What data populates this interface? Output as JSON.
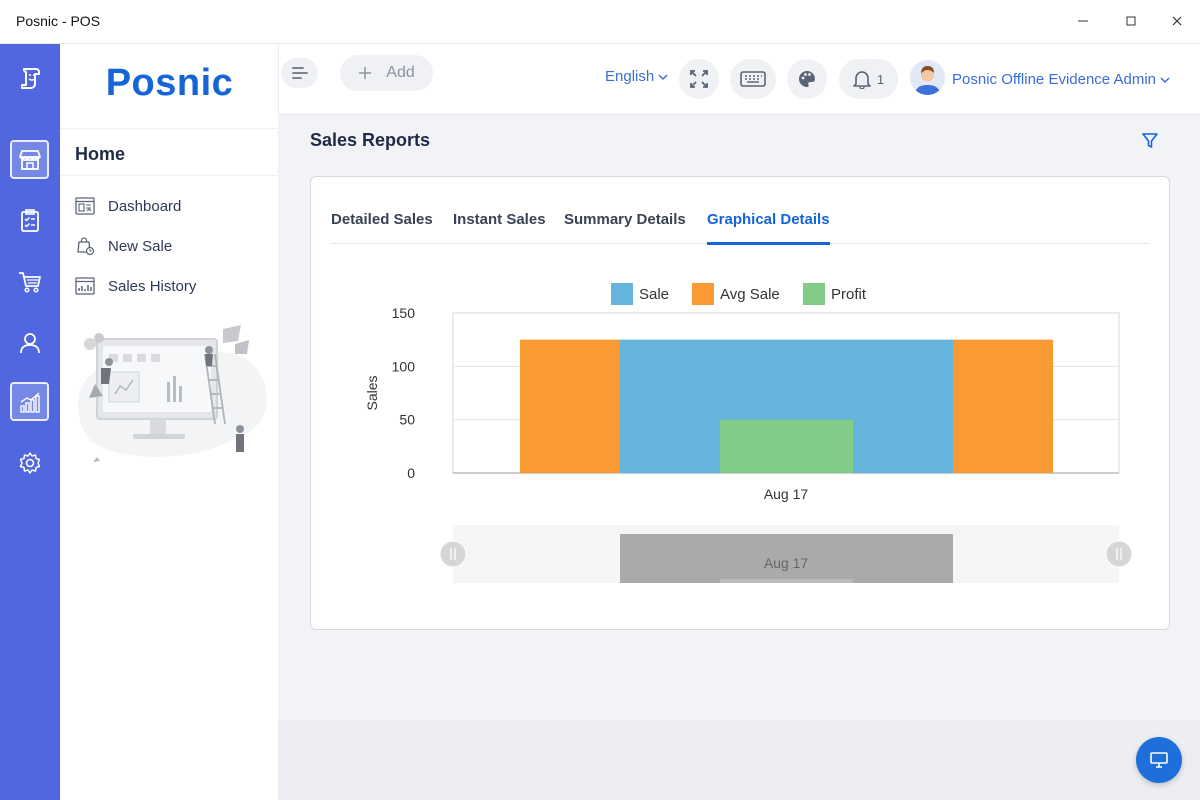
{
  "window": {
    "title": "Posnic - POS"
  },
  "sidebar": {
    "brand": "Posnic",
    "section_title": "Home",
    "items": [
      {
        "label": "Dashboard",
        "icon": "dashboard-icon"
      },
      {
        "label": "New Sale",
        "icon": "new-sale-icon"
      },
      {
        "label": "Sales History",
        "icon": "sales-history-icon"
      }
    ]
  },
  "rail": {
    "items": [
      "logo-icon",
      "store-icon",
      "clipboard-icon",
      "cart-icon",
      "user-icon",
      "reports-icon",
      "settings-icon"
    ],
    "active": "store-icon"
  },
  "header": {
    "add_label": "Add",
    "language": "English",
    "notification_count": "1",
    "user_name": "Posnic Offline Evidence Admin"
  },
  "page": {
    "title": "Sales Reports",
    "tabs": [
      {
        "label": "Detailed Sales",
        "active": false
      },
      {
        "label": "Instant Sales",
        "active": false
      },
      {
        "label": "Summary Details",
        "active": false
      },
      {
        "label": "Graphical Details",
        "active": true
      }
    ]
  },
  "colors": {
    "accent": "#1565d8",
    "rail": "#5067df",
    "sale": "#65b4dc",
    "avg_sale": "#fb9a35",
    "profit": "#82cc88"
  },
  "chart_data": {
    "type": "bar",
    "categories": [
      "Aug 17"
    ],
    "series": [
      {
        "name": "Sale",
        "values": [
          125
        ]
      },
      {
        "name": "Avg Sale",
        "values": [
          125
        ]
      },
      {
        "name": "Profit",
        "values": [
          50
        ]
      }
    ],
    "ylabel": "Sales",
    "ylim": [
      0,
      150
    ],
    "yticks": [
      0,
      50,
      100,
      150
    ],
    "legend": "top",
    "grid": true,
    "range_slider_label": "Aug 17"
  }
}
